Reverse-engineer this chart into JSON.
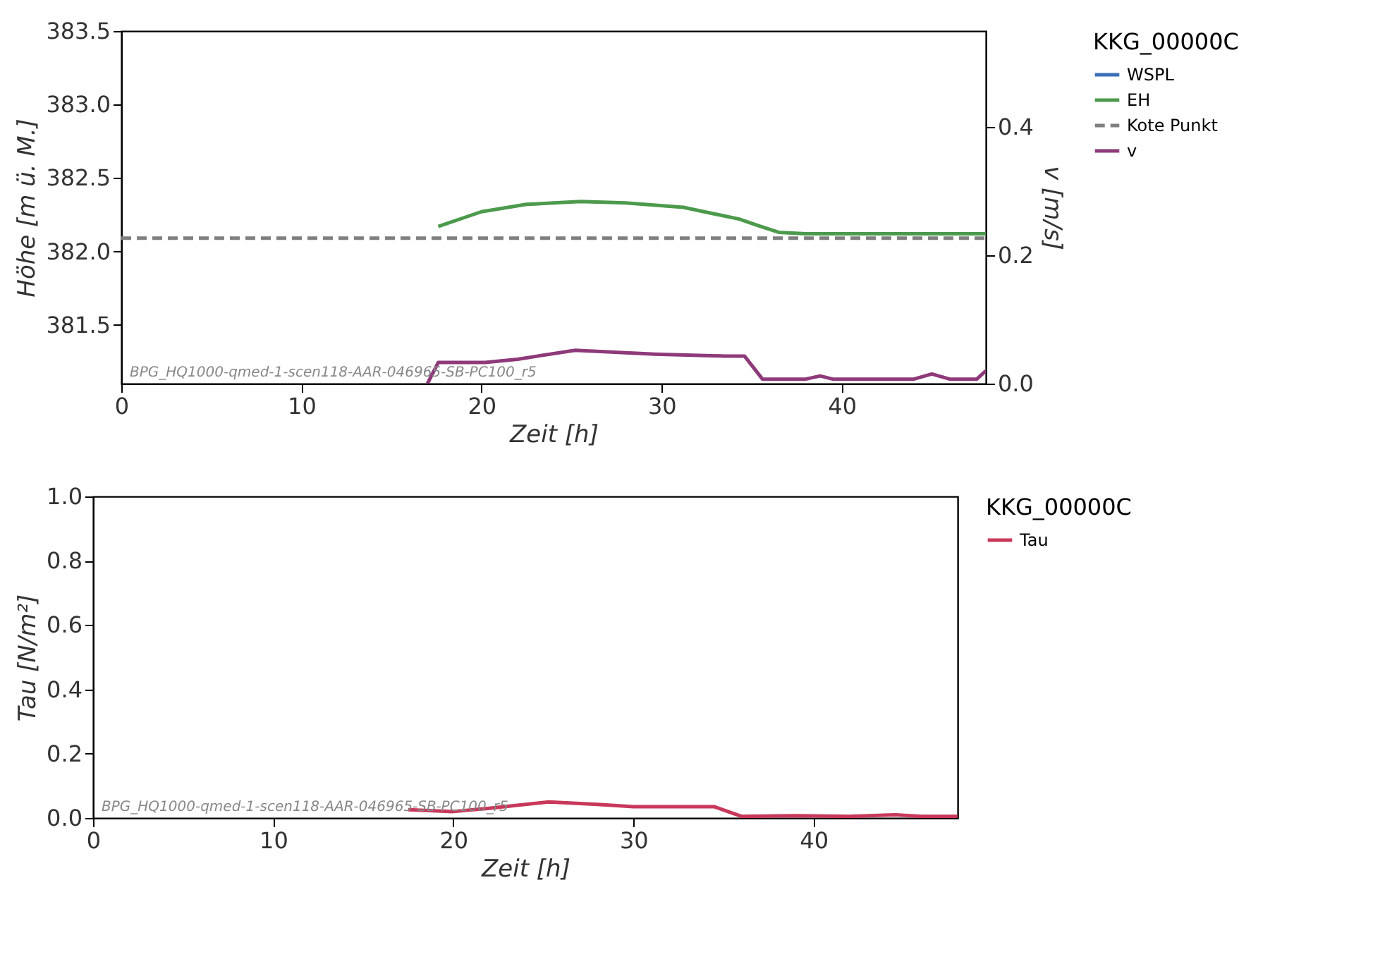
{
  "chart_data": [
    {
      "type": "line",
      "xlabel": "Zeit [h]",
      "ylabel": "Höhe [m ü. M.]",
      "y2label": "v [m/s]",
      "legend_title": "KKG_00000C",
      "legend": "right",
      "xlim": [
        0,
        48
      ],
      "xticks": [
        0,
        10,
        20,
        30,
        40
      ],
      "ylim": [
        381.1,
        383.5
      ],
      "yticks": [
        381.5,
        {
          "value": 382,
          "label": "382.0"
        },
        382.5,
        {
          "value": 383,
          "label": "383.0"
        },
        383.5
      ],
      "y2lim": [
        0,
        0.55
      ],
      "y2ticks": [
        {
          "value": 0,
          "label": "0.0"
        },
        0.2,
        0.4
      ],
      "annotations": [
        "BPG_HQ1000-qmed-1-scen118-AAR-046965-SB-PC100_r5"
      ],
      "series": [
        {
          "name": "WSPL",
          "color": "#3b6fb6"
        },
        {
          "name": "EH",
          "color": "#4c9a4c",
          "x": [
            17.6,
            20,
            22.5,
            25.5,
            28,
            31.2,
            34.3,
            35.5,
            36.5,
            38,
            42,
            48
          ],
          "values": [
            382.17,
            382.27,
            382.32,
            382.34,
            382.33,
            382.3,
            382.22,
            382.17,
            382.13,
            382.12,
            382.12,
            382.12
          ]
        },
        {
          "name": "Kote Punkt",
          "color": "#7f7f7f",
          "line_style": "dashed",
          "x": [
            0,
            48
          ],
          "values": [
            382.09,
            382.09
          ]
        },
        {
          "name": "v",
          "color": "#8e3a7a",
          "axis": "y2",
          "x": [
            17,
            17.6,
            20.2,
            22,
            25.2,
            29.6,
            33.5,
            34.6,
            35.6,
            38,
            38.8,
            39.5,
            44,
            45,
            46,
            47.5,
            48
          ],
          "values": [
            0,
            0.033,
            0.033,
            0.038,
            0.052,
            0.046,
            0.043,
            0.043,
            0.007,
            0.007,
            0.012,
            0.007,
            0.007,
            0.015,
            0.007,
            0.007,
            0.02
          ]
        }
      ]
    },
    {
      "type": "line",
      "xlabel": "Zeit [h]",
      "ylabel": "Tau [N/m²]",
      "legend_title": "KKG_00000C",
      "legend": "right",
      "xlim": [
        0,
        48
      ],
      "xticks": [
        0,
        10,
        20,
        30,
        40
      ],
      "ylim": [
        0,
        1
      ],
      "yticks": [
        {
          "value": 0,
          "label": "0.0"
        },
        0.2,
        0.4,
        0.6,
        0.8,
        {
          "value": 1,
          "label": "1.0"
        }
      ],
      "annotations": [
        "BPG_HQ1000-qmed-1-scen118-AAR-046965-SB-PC100_r5"
      ],
      "series": [
        {
          "name": "Tau",
          "color": "#c8385a",
          "x": [
            17.5,
            20,
            22,
            25.3,
            28,
            30,
            34.5,
            36,
            39,
            42,
            44.5,
            46,
            48
          ],
          "values": [
            0.026,
            0.02,
            0.03,
            0.05,
            0.042,
            0.035,
            0.035,
            0.005,
            0.007,
            0.005,
            0.01,
            0.005,
            0.005
          ]
        }
      ]
    }
  ]
}
